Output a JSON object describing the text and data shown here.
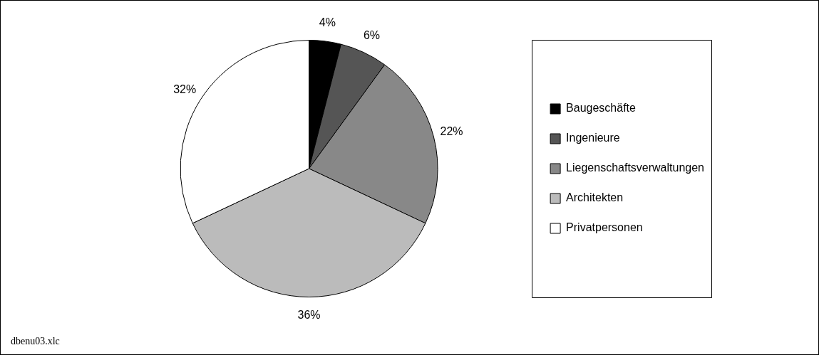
{
  "chart_data": {
    "type": "pie",
    "categories": [
      "Baugeschäfte",
      "Ingenieure",
      "Liegenschaftsverwaltungen",
      "Architekten",
      "Privatpersonen"
    ],
    "values": [
      4,
      6,
      22,
      36,
      32
    ],
    "colors": [
      "#000000",
      "#555555",
      "#888888",
      "#bbbbbb",
      "#ffffff"
    ],
    "value_labels": [
      "4%",
      "6%",
      "22%",
      "36%",
      "32%"
    ],
    "legend": "right",
    "annotations": [
      "dbenu03.xlc"
    ]
  }
}
